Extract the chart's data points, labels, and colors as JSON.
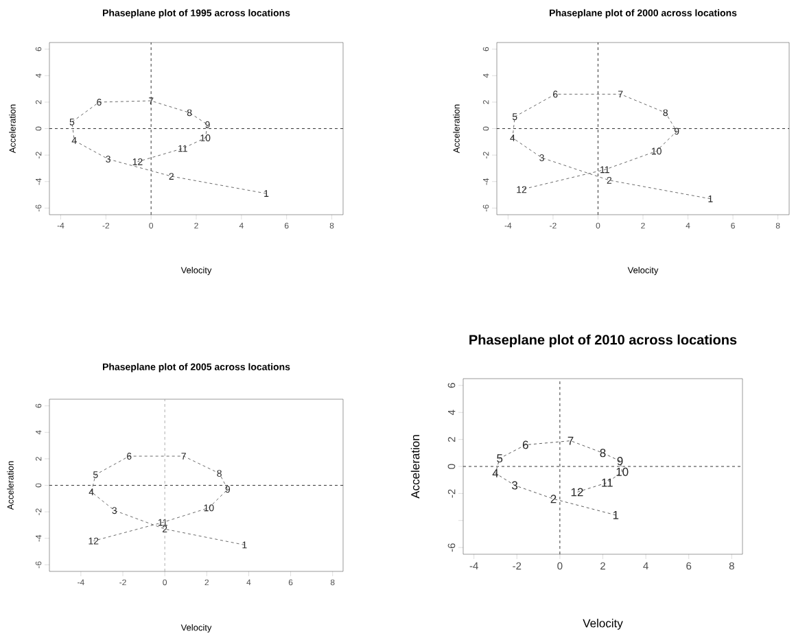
{
  "chart_data": [
    {
      "type": "line",
      "title": "Phaseplane plot of 1995 across locations",
      "xlabel": "Velocity",
      "ylabel": "Acceleration",
      "xlim": [
        -4.5,
        8.5
      ],
      "ylim": [
        -6.5,
        6.5
      ],
      "xticks": [
        -4,
        -2,
        0,
        2,
        4,
        6,
        8
      ],
      "yticks": [
        -6,
        -4,
        -2,
        0,
        2,
        4,
        6
      ],
      "line_style": "dashed",
      "series": [
        {
          "color": "#444444",
          "x": [
            5.1,
            0.9,
            -1.9,
            -3.4,
            -3.5,
            -2.3,
            0.0,
            1.7,
            2.5,
            2.4,
            1.4,
            -0.6
          ],
          "values": [
            -4.9,
            -3.6,
            -2.3,
            -0.9,
            0.5,
            2.0,
            2.1,
            1.2,
            0.3,
            -0.7,
            -1.5,
            -2.5
          ]
        }
      ],
      "annotations": [
        {
          "text": "1",
          "x": 5.1,
          "y": -4.9
        },
        {
          "text": "2",
          "x": 0.9,
          "y": -3.6
        },
        {
          "text": "3",
          "x": -1.9,
          "y": -2.3
        },
        {
          "text": "4",
          "x": -3.4,
          "y": -0.9
        },
        {
          "text": "5",
          "x": -3.5,
          "y": 0.5
        },
        {
          "text": "6",
          "x": -2.3,
          "y": 2.0
        },
        {
          "text": "7",
          "x": 0.0,
          "y": 2.1
        },
        {
          "text": "8",
          "x": 1.7,
          "y": 1.2
        },
        {
          "text": "9",
          "x": 2.5,
          "y": 0.3
        },
        {
          "text": "10",
          "x": 2.4,
          "y": -0.7
        },
        {
          "text": "11",
          "x": 1.4,
          "y": -1.5
        },
        {
          "text": "12",
          "x": -0.6,
          "y": -2.5
        }
      ],
      "ref_lines": [
        {
          "axis": "x",
          "value": 0,
          "color": "#000000",
          "line_style": "dashed"
        },
        {
          "axis": "y",
          "value": 0,
          "color": "#000000",
          "line_style": "dashed"
        }
      ]
    },
    {
      "type": "line",
      "title": "Phaseplane plot of 2000 across locations",
      "xlabel": "Velocity",
      "ylabel": "Acceleration",
      "xlim": [
        -4.5,
        8.5
      ],
      "ylim": [
        -6.5,
        6.5
      ],
      "xticks": [
        -4,
        -2,
        0,
        2,
        4,
        6,
        8
      ],
      "yticks": [
        -6,
        -4,
        -2,
        0,
        2,
        4,
        6
      ],
      "line_style": "dashed",
      "series": [
        {
          "color": "#444444",
          "x": [
            5.0,
            0.5,
            -2.5,
            -3.8,
            -3.7,
            -1.9,
            1.0,
            3.0,
            3.5,
            2.6,
            0.3,
            -3.4
          ],
          "values": [
            -5.3,
            -3.9,
            -2.2,
            -0.7,
            0.9,
            2.6,
            2.6,
            1.2,
            -0.2,
            -1.7,
            -3.1,
            -4.6
          ]
        }
      ],
      "annotations": [
        {
          "text": "1",
          "x": 5.0,
          "y": -5.3
        },
        {
          "text": "2",
          "x": 0.5,
          "y": -3.9
        },
        {
          "text": "3",
          "x": -2.5,
          "y": -2.2
        },
        {
          "text": "4",
          "x": -3.8,
          "y": -0.7
        },
        {
          "text": "5",
          "x": -3.7,
          "y": 0.9
        },
        {
          "text": "6",
          "x": -1.9,
          "y": 2.6
        },
        {
          "text": "7",
          "x": 1.0,
          "y": 2.6
        },
        {
          "text": "8",
          "x": 3.0,
          "y": 1.2
        },
        {
          "text": "9",
          "x": 3.5,
          "y": -0.2
        },
        {
          "text": "10",
          "x": 2.6,
          "y": -1.7
        },
        {
          "text": "11",
          "x": 0.3,
          "y": -3.1
        },
        {
          "text": "12",
          "x": -3.4,
          "y": -4.6
        }
      ],
      "ref_lines": [
        {
          "axis": "x",
          "value": 0,
          "color": "#000000",
          "line_style": "dashed"
        },
        {
          "axis": "y",
          "value": 0,
          "color": "#000000",
          "line_style": "dashed"
        }
      ]
    },
    {
      "type": "line",
      "title": "Phaseplane plot of 2005 across locations",
      "xlabel": "Velocity",
      "ylabel": "Acceleration",
      "xlim": [
        -5.5,
        8.5
      ],
      "ylim": [
        -6.5,
        6.5
      ],
      "xticks": [
        -4,
        -2,
        0,
        2,
        4,
        6,
        8
      ],
      "yticks": [
        -6,
        -4,
        -2,
        0,
        2,
        4,
        6
      ],
      "line_style": "dashed",
      "series": [
        {
          "color": "#444444",
          "x": [
            3.8,
            0.0,
            -2.4,
            -3.5,
            -3.3,
            -1.7,
            0.9,
            2.6,
            3.0,
            2.1,
            -0.1,
            -3.4
          ],
          "values": [
            -4.5,
            -3.3,
            -1.9,
            -0.5,
            0.8,
            2.2,
            2.2,
            0.9,
            -0.3,
            -1.7,
            -2.8,
            -4.2
          ]
        }
      ],
      "annotations": [
        {
          "text": "1",
          "x": 3.8,
          "y": -4.5
        },
        {
          "text": "2",
          "x": 0.0,
          "y": -3.3
        },
        {
          "text": "3",
          "x": -2.4,
          "y": -1.9
        },
        {
          "text": "4",
          "x": -3.5,
          "y": -0.5
        },
        {
          "text": "5",
          "x": -3.3,
          "y": 0.8
        },
        {
          "text": "6",
          "x": -1.7,
          "y": 2.2
        },
        {
          "text": "7",
          "x": 0.9,
          "y": 2.2
        },
        {
          "text": "8",
          "x": 2.6,
          "y": 0.9
        },
        {
          "text": "9",
          "x": 3.0,
          "y": -0.3
        },
        {
          "text": "10",
          "x": 2.1,
          "y": -1.7
        },
        {
          "text": "11",
          "x": -0.1,
          "y": -2.8
        },
        {
          "text": "12",
          "x": -3.4,
          "y": -4.2
        }
      ],
      "ref_lines": [
        {
          "axis": "x",
          "value": 0,
          "color": "#999999",
          "line_style": "dashed"
        },
        {
          "axis": "y",
          "value": 0,
          "color": "#000000",
          "line_style": "dashed"
        }
      ]
    },
    {
      "type": "line",
      "title": "Phaseplane plot of 2010 across locations",
      "xlabel": "Velocity",
      "ylabel": "Acceleration",
      "xlim": [
        -4.5,
        8.5
      ],
      "ylim": [
        -6.5,
        6.5
      ],
      "xticks": [
        -4,
        -2,
        0,
        2,
        4,
        6,
        8
      ],
      "yticks": [
        -6,
        {
          "value": -4,
          "label": null
        },
        -2,
        0,
        2,
        4,
        6
      ],
      "line_style": "dashed",
      "series": [
        {
          "color": "#333333",
          "x": [
            2.6,
            -0.3,
            -2.1,
            -3.0,
            -2.8,
            -1.6,
            0.5,
            2.0,
            2.8,
            2.9,
            2.2,
            0.8
          ],
          "values": [
            -3.6,
            -2.4,
            -1.4,
            -0.5,
            0.6,
            1.6,
            1.9,
            1.0,
            0.4,
            -0.4,
            -1.2,
            -1.9
          ]
        }
      ],
      "annotations": [
        {
          "text": "1",
          "x": 2.6,
          "y": -3.6
        },
        {
          "text": "2",
          "x": -0.3,
          "y": -2.4
        },
        {
          "text": "3",
          "x": -2.1,
          "y": -1.4
        },
        {
          "text": "4",
          "x": -3.0,
          "y": -0.5
        },
        {
          "text": "5",
          "x": -2.8,
          "y": 0.6
        },
        {
          "text": "6",
          "x": -1.6,
          "y": 1.6
        },
        {
          "text": "7",
          "x": 0.5,
          "y": 1.9
        },
        {
          "text": "8",
          "x": 2.0,
          "y": 1.0
        },
        {
          "text": "9",
          "x": 2.8,
          "y": 0.4
        },
        {
          "text": "10",
          "x": 2.9,
          "y": -0.4
        },
        {
          "text": "11",
          "x": 2.2,
          "y": -1.2
        },
        {
          "text": "12",
          "x": 0.8,
          "y": -1.9
        }
      ],
      "ref_lines": [
        {
          "axis": "x",
          "value": 0,
          "color": "#000000",
          "line_style": "dashed"
        },
        {
          "axis": "y",
          "value": 0,
          "color": "#000000",
          "line_style": "dashed"
        }
      ]
    }
  ]
}
